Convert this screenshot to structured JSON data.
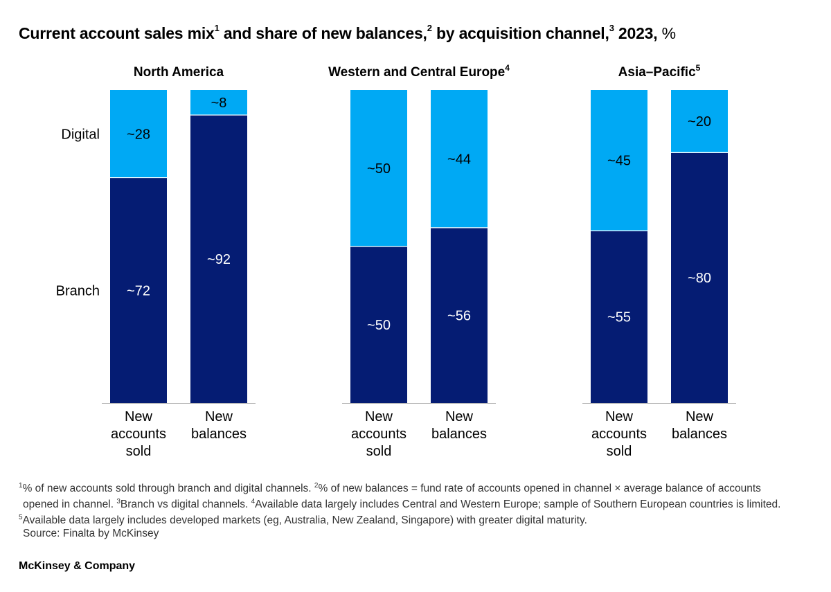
{
  "title": {
    "part1": "Current account sales mix",
    "sup1": "1",
    "part2": " and share of new balances,",
    "sup2": "2",
    "part3": " by acquisition channel,",
    "sup3": "3",
    "part4": " 2023,",
    "unit": " %"
  },
  "colors": {
    "branch": "#051c73",
    "digital": "#00a9f4",
    "axis": "#aaaaaa",
    "text_on_digital": "#000000",
    "text_on_branch": "#ffffff"
  },
  "chart_data": {
    "type": "stacked_bar",
    "stack_order": [
      "Branch",
      "Digital"
    ],
    "series_labels": [
      "Digital",
      "Branch"
    ],
    "ylim": [
      0,
      100
    ],
    "panels": [
      {
        "title": "North America",
        "title_sup": "",
        "bars": [
          {
            "label": "New accounts sold",
            "label_lines": [
              "New",
              "accounts",
              "sold"
            ],
            "branch": 72,
            "digital": 28,
            "branch_label": "~72",
            "digital_label": "~28"
          },
          {
            "label": "New balances",
            "label_lines": [
              "New",
              "balances"
            ],
            "branch": 92,
            "digital": 8,
            "branch_label": "~92",
            "digital_label": "~8"
          }
        ]
      },
      {
        "title": "Western and Central Europe",
        "title_sup": "4",
        "bars": [
          {
            "label": "New accounts sold",
            "label_lines": [
              "New",
              "accounts",
              "sold"
            ],
            "branch": 50,
            "digital": 50,
            "branch_label": "~50",
            "digital_label": "~50"
          },
          {
            "label": "New balances",
            "label_lines": [
              "New",
              "balances"
            ],
            "branch": 56,
            "digital": 44,
            "branch_label": "~56",
            "digital_label": "~44"
          }
        ]
      },
      {
        "title": "Asia–Pacific",
        "title_sup": "5",
        "bars": [
          {
            "label": "New accounts sold",
            "label_lines": [
              "New",
              "accounts",
              "sold"
            ],
            "branch": 55,
            "digital": 45,
            "branch_label": "~55",
            "digital_label": "~45"
          },
          {
            "label": "New balances",
            "label_lines": [
              "New",
              "balances"
            ],
            "branch": 80,
            "digital": 20,
            "branch_label": "~80",
            "digital_label": "~20"
          }
        ]
      }
    ]
  },
  "footnotes": {
    "line1_sup_a": "1",
    "line1_a": "% of new accounts sold through branch and digital channels. ",
    "line1_sup_b": "2",
    "line1_b": "% of new balances = fund rate of accounts opened in channel × average balance of accounts",
    "line2_a": "opened in channel. ",
    "line2_sup_b": "3",
    "line2_b": "Branch vs digital channels. ",
    "line2_sup_c": "4",
    "line2_c": "Available data largely includes Central and Western Europe; sample of Southern European countries is limited.",
    "line3_sup_a": "5",
    "line3_a": "Available data largely includes developed markets (eg, Australia, New Zealand, Singapore) with greater digital maturity.",
    "source": "Source: Finalta by McKinsey"
  },
  "brand": "McKinsey & Company"
}
